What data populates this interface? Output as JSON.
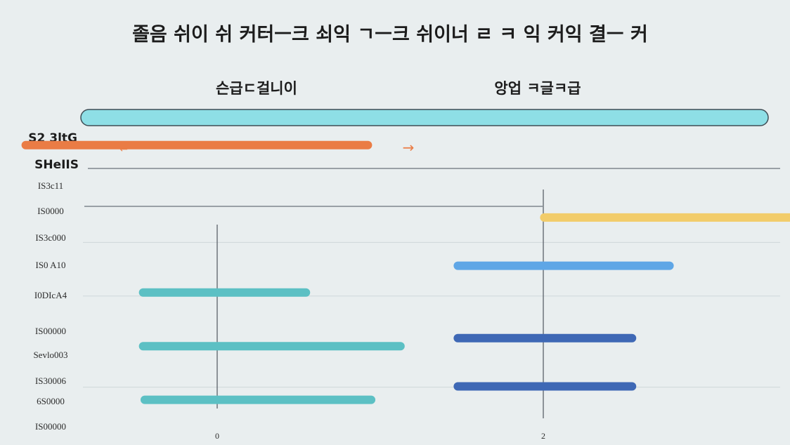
{
  "chart_data": {
    "type": "bar",
    "orientation": "horizontal",
    "title": "졸음 쉬이 쉬 커터ㅡ크 쇠익 ㄱㅡ크 쉬이너 ㄹ ㅋ 익 커익 결ㅡ 커",
    "subtitle_left": "슨급ㄷ걸니이",
    "subtitle_right": "앙업 ㅋ글ㅋ급",
    "ylabel_lines": [
      "S2 3ltG",
      "SHeIIS"
    ],
    "y_tick_labels": [
      "IS3c11",
      "IS0000",
      "IS3c000",
      "IS0 A10",
      "I0DIcA4",
      "IS00000",
      "Sevlo003",
      "IS30006",
      "6S0000",
      "IS00000"
    ],
    "x_tick_labels": [
      "0",
      "2"
    ],
    "legend_arrow_left": "←",
    "legend_arrow_right": "→",
    "header_band_color": "#8edfe6",
    "colors": {
      "orange": "#ea7c45",
      "yellow": "#f2cc6a",
      "light_blue": "#5fa6e6",
      "dark_blue": "#3e68b5",
      "teal": "#5cc0c4",
      "axis": "#5b6068"
    },
    "series": [
      {
        "color": "orange",
        "row": -1.5,
        "start": -1.2,
        "end": 0.95
      },
      {
        "color": "yellow",
        "row": 1.2,
        "start": 1.98,
        "end": 3.55
      },
      {
        "color": "light_blue",
        "row": 3.0,
        "start": 1.45,
        "end": 2.8
      },
      {
        "color": "teal",
        "row": 4.0,
        "start": -0.48,
        "end": 0.57
      },
      {
        "color": "dark_blue",
        "row": 5.7,
        "start": 1.45,
        "end": 2.57
      },
      {
        "color": "teal",
        "row": 6.0,
        "start": -0.48,
        "end": 1.15
      },
      {
        "color": "dark_blue",
        "row": 7.5,
        "start": 1.45,
        "end": 2.57
      },
      {
        "color": "teal",
        "row": 8.0,
        "start": -0.47,
        "end": 0.97
      }
    ]
  }
}
